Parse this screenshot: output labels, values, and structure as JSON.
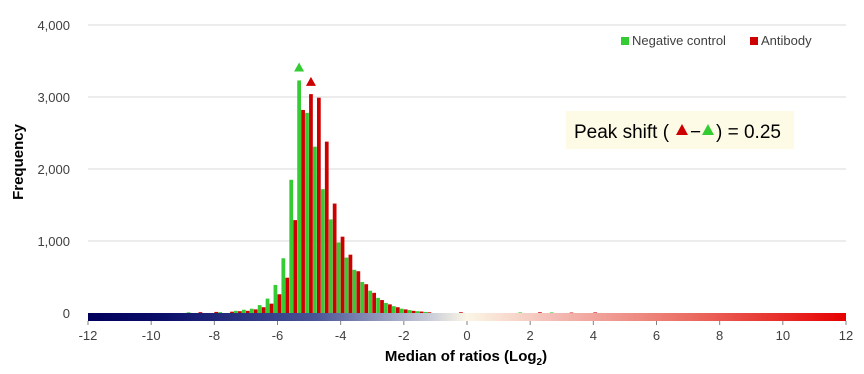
{
  "chart_data": {
    "type": "bar",
    "ylabel": "Frequency",
    "xlabel_main": "Median of ratios (Log",
    "xlabel_sub": "2",
    "xlabel_close": ")",
    "xlim": [
      -12,
      12
    ],
    "ylim": [
      0,
      4000
    ],
    "x_ticks": [
      -12,
      -10,
      -8,
      -6,
      -4,
      -2,
      0,
      2,
      4,
      6,
      8,
      10,
      12
    ],
    "y_ticks": [
      0,
      1000,
      2000,
      3000,
      4000
    ],
    "y_tick_labels": [
      "0",
      "1,000",
      "2,000",
      "3,000",
      "4,000"
    ],
    "grid": true,
    "legend_position": "top-right",
    "colors": {
      "negative_control": "#33cc33",
      "antibody": "#cc0000",
      "grid": "#d9d9d9",
      "annotation_bg": "#fdfbe6",
      "gradient_low": "#00005c",
      "gradient_mid": "#fbf6e6",
      "gradient_high": "#e60000"
    },
    "bin_width": 0.25,
    "series": [
      {
        "name": "Negative control",
        "bins": [
          {
            "x": -7.25,
            "y": 30
          },
          {
            "x": -7.0,
            "y": 45
          },
          {
            "x": -6.75,
            "y": 60
          },
          {
            "x": -6.5,
            "y": 110
          },
          {
            "x": -6.25,
            "y": 200
          },
          {
            "x": -6.0,
            "y": 390
          },
          {
            "x": -5.75,
            "y": 760
          },
          {
            "x": -5.5,
            "y": 1850
          },
          {
            "x": -5.25,
            "y": 3230
          },
          {
            "x": -5.0,
            "y": 2780
          },
          {
            "x": -4.75,
            "y": 2310
          },
          {
            "x": -4.5,
            "y": 1720
          },
          {
            "x": -4.25,
            "y": 1300
          },
          {
            "x": -4.0,
            "y": 980
          },
          {
            "x": -3.75,
            "y": 770
          },
          {
            "x": -3.5,
            "y": 600
          },
          {
            "x": -3.25,
            "y": 430
          },
          {
            "x": -3.0,
            "y": 310
          },
          {
            "x": -2.75,
            "y": 210
          },
          {
            "x": -2.5,
            "y": 140
          },
          {
            "x": -2.25,
            "y": 95
          },
          {
            "x": -2.0,
            "y": 60
          },
          {
            "x": -1.75,
            "y": 40
          },
          {
            "x": -1.5,
            "y": 25
          },
          {
            "x": -1.25,
            "y": 15
          }
        ]
      },
      {
        "name": "Antibody",
        "bins": [
          {
            "x": -7.25,
            "y": 25
          },
          {
            "x": -7.0,
            "y": 30
          },
          {
            "x": -6.75,
            "y": 50
          },
          {
            "x": -6.5,
            "y": 80
          },
          {
            "x": -6.25,
            "y": 130
          },
          {
            "x": -6.0,
            "y": 260
          },
          {
            "x": -5.75,
            "y": 490
          },
          {
            "x": -5.5,
            "y": 1290
          },
          {
            "x": -5.25,
            "y": 2820
          },
          {
            "x": -5.0,
            "y": 3040
          },
          {
            "x": -4.75,
            "y": 2990
          },
          {
            "x": -4.5,
            "y": 2380
          },
          {
            "x": -4.25,
            "y": 1520
          },
          {
            "x": -4.0,
            "y": 1060
          },
          {
            "x": -3.75,
            "y": 810
          },
          {
            "x": -3.5,
            "y": 580
          },
          {
            "x": -3.25,
            "y": 400
          },
          {
            "x": -3.0,
            "y": 280
          },
          {
            "x": -2.75,
            "y": 180
          },
          {
            "x": -2.5,
            "y": 120
          },
          {
            "x": -2.25,
            "y": 80
          },
          {
            "x": -2.0,
            "y": 50
          },
          {
            "x": -1.75,
            "y": 30
          },
          {
            "x": -1.5,
            "y": 20
          },
          {
            "x": -1.25,
            "y": 10
          }
        ]
      }
    ],
    "sparse_bins": [
      {
        "series": "Negative control",
        "x": -8.75,
        "y": 10
      },
      {
        "series": "Antibody",
        "x": -8.5,
        "y": 12
      },
      {
        "series": "Antibody",
        "x": -8.0,
        "y": 15
      },
      {
        "series": "Negative control",
        "x": -7.75,
        "y": 12
      },
      {
        "series": "Antibody",
        "x": -7.5,
        "y": 18
      },
      {
        "series": "Antibody",
        "x": -0.25,
        "y": 10
      },
      {
        "series": "Negative control",
        "x": 1.75,
        "y": 8
      },
      {
        "series": "Antibody",
        "x": 2.25,
        "y": 10
      },
      {
        "series": "Negative control",
        "x": 2.75,
        "y": 8
      },
      {
        "series": "Antibody",
        "x": 3.25,
        "y": 6
      },
      {
        "series": "Antibody",
        "x": 4.0,
        "y": 8
      }
    ],
    "peak_markers": [
      {
        "series": "Negative control",
        "x": -5.25,
        "y": 3410
      },
      {
        "series": "Antibody",
        "x": -5.0,
        "y": 3210
      }
    ],
    "annotation": {
      "prefix": "Peak shift (",
      "dash": "−",
      "suffix": ") = 0.25"
    }
  }
}
